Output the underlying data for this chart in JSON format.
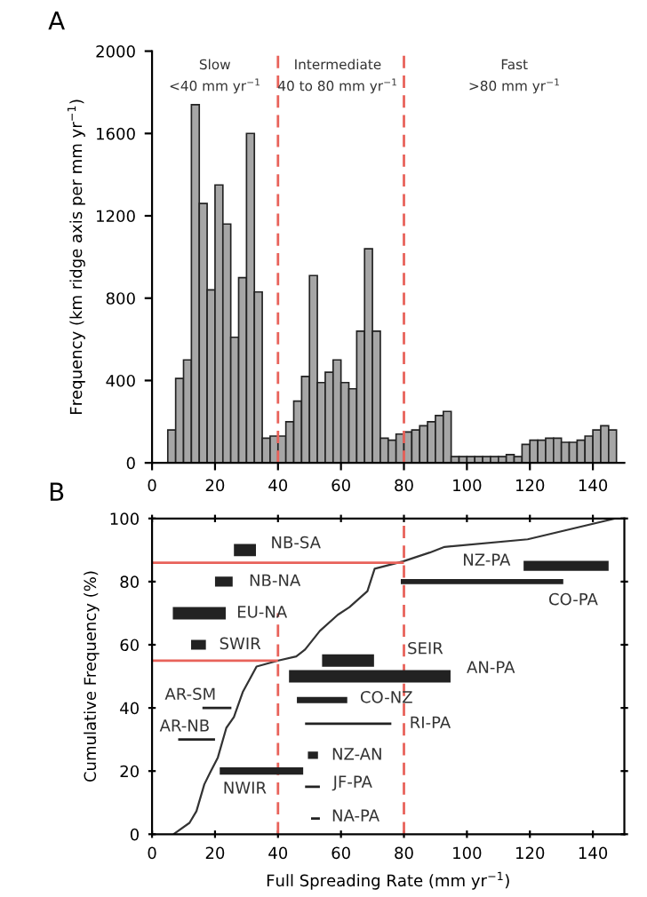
{
  "chart_data": [
    {
      "type": "histogram",
      "title": "A",
      "ylabel": "Frequency (km ridge axis per mm yr$^{−1}$)",
      "bins": [
        5,
        7.5,
        10,
        12.5,
        15,
        17.5,
        20,
        22.5,
        25,
        27.5,
        30,
        32.5,
        35,
        37.5,
        40,
        42.5,
        45,
        47.5,
        50,
        52.5,
        55,
        57.5,
        60,
        62.5,
        65,
        67.5,
        70,
        72.5,
        75,
        77.5,
        80,
        82.5,
        85,
        87.5,
        90,
        92.5,
        95,
        97.5,
        100,
        102.5,
        105,
        107.5,
        110,
        112.5,
        115,
        117.5,
        120,
        122.5,
        125,
        127.5,
        130,
        132.5,
        135,
        137.5,
        140,
        142.5,
        145,
        147.5
      ],
      "values": [
        160,
        410,
        500,
        1740,
        1260,
        840,
        1350,
        1160,
        610,
        900,
        1600,
        830,
        120,
        130,
        130,
        200,
        300,
        420,
        910,
        390,
        440,
        500,
        390,
        360,
        640,
        1040,
        640,
        120,
        110,
        140,
        150,
        160,
        180,
        200,
        230,
        250,
        30,
        30,
        30,
        30,
        30,
        30,
        30,
        40,
        30,
        90,
        110,
        110,
        120,
        120,
        100,
        100,
        110,
        130,
        160,
        180,
        160
      ],
      "color": "#a6a6a6",
      "xlim": [
        0,
        150
      ],
      "xticks": [
        0,
        20,
        40,
        60,
        80,
        100,
        120,
        140
      ],
      "ylim": [
        0,
        2000
      ],
      "yticks": [
        0,
        400,
        800,
        1200,
        1600,
        2000
      ],
      "ref_lines": [
        {
          "axis": "x",
          "value": 40,
          "color": "#e8625a",
          "line_style": "dashed"
        },
        {
          "axis": "x",
          "value": 80,
          "color": "#e8625a",
          "line_style": "dashed"
        }
      ],
      "annotations": [
        "Slow",
        "<40 mm yr$^{−1}$",
        "Intermediate",
        "40 to 80 mm yr$^{−1}$",
        "Fast",
        ">80 mm yr$^{−1}$"
      ],
      "grid": false
    },
    {
      "type": "line",
      "title": "B",
      "xlabel": "Full Spreading Rate (mm yr$^{−1}$)",
      "ylabel": "Cumulative Frequency (%)",
      "xlim": [
        0,
        150
      ],
      "xticks": [
        0,
        20,
        40,
        60,
        80,
        100,
        120,
        140
      ],
      "ylim": [
        0,
        100
      ],
      "yticks": [
        0,
        20,
        40,
        60,
        80,
        100
      ],
      "grid": false,
      "series": [
        {
          "color": "#333333",
          "line_style": "solid",
          "x": [
            6.8,
            11.9,
            14.1,
            16.6,
            18.5,
            20.9,
            23.6,
            26,
            28.8,
            33.2,
            40.1,
            45.8,
            48.6,
            53.3,
            59,
            62.7,
            68.4,
            70.7,
            79.7,
            88.2,
            92.9,
            119.3,
            147.2
          ],
          "values": [
            0,
            3.6,
            7.3,
            15.8,
            19.6,
            24.3,
            33.7,
            37.1,
            45,
            53.1,
            55,
            56.3,
            58.5,
            64.4,
            69.5,
            71.9,
            77,
            84.1,
            86.4,
            89.2,
            91,
            93.4,
            100
          ]
        },
        {
          "color": "#e8625a",
          "line_style": "solid",
          "x": [
            0,
            80
          ],
          "values": [
            86,
            86
          ]
        },
        {
          "color": "#e8625a",
          "line_style": "solid",
          "x": [
            0,
            40
          ],
          "values": [
            55,
            55
          ]
        },
        {
          "color": "#e8625a",
          "line_style": "dashed",
          "x": [
            40,
            40
          ],
          "values": [
            0,
            70
          ]
        },
        {
          "color": "#e8625a",
          "line_style": "dashed",
          "x": [
            80,
            80
          ],
          "values": [
            0,
            100
          ]
        },
        {
          "color": "#222222",
          "line_style": "solid",
          "x": [
            26,
            33
          ],
          "values": [
            90,
            90
          ]
        },
        {
          "color": "#222222",
          "line_style": "solid",
          "x": [
            118,
            145
          ],
          "values": [
            85,
            85
          ]
        },
        {
          "color": "#222222",
          "line_style": "solid",
          "x": [
            20,
            25.6
          ],
          "values": [
            80,
            80
          ]
        },
        {
          "color": "#222222",
          "line_style": "solid",
          "x": [
            79,
            130.6
          ],
          "values": [
            80,
            80
          ]
        },
        {
          "color": "#222222",
          "line_style": "solid",
          "x": [
            6.6,
            23.4
          ],
          "values": [
            70,
            70
          ]
        },
        {
          "color": "#222222",
          "line_style": "solid",
          "x": [
            12.4,
            17.1
          ],
          "values": [
            60,
            60
          ]
        },
        {
          "color": "#222222",
          "line_style": "solid",
          "x": [
            54,
            70.5
          ],
          "values": [
            55,
            55
          ]
        },
        {
          "color": "#222222",
          "line_style": "solid",
          "x": [
            43.5,
            94.8
          ],
          "values": [
            50,
            50
          ]
        },
        {
          "color": "#222222",
          "line_style": "solid",
          "x": [
            16,
            25.2
          ],
          "values": [
            40,
            40
          ]
        },
        {
          "color": "#222222",
          "line_style": "solid",
          "x": [
            46,
            62
          ],
          "values": [
            42.5,
            42.5
          ]
        },
        {
          "color": "#222222",
          "line_style": "solid",
          "x": [
            48.6,
            76
          ],
          "values": [
            35,
            35
          ]
        },
        {
          "color": "#222222",
          "line_style": "solid",
          "x": [
            8.3,
            20
          ],
          "values": [
            30,
            30
          ]
        },
        {
          "color": "#222222",
          "line_style": "solid",
          "x": [
            49.5,
            52.7
          ],
          "values": [
            25,
            25
          ]
        },
        {
          "color": "#222222",
          "line_style": "solid",
          "x": [
            21.5,
            48
          ],
          "values": [
            20,
            20
          ]
        },
        {
          "color": "#222222",
          "line_style": "solid",
          "x": [
            48.6,
            53.3
          ],
          "values": [
            15,
            15
          ]
        },
        {
          "color": "#222222",
          "line_style": "solid",
          "x": [
            50.5,
            53.3
          ],
          "values": [
            5,
            5
          ]
        }
      ],
      "annotations": [
        "NB-SA",
        "NZ-PA",
        "NB-NA",
        "CO-PA",
        "EU-NA",
        "SWIR",
        "SEIR",
        "AN-PA",
        "AR-SM",
        "CO-NZ",
        "RI-PA",
        "AR-NB",
        "NZ-AN",
        "NWIR",
        "JF-PA",
        "NA-PA"
      ]
    }
  ]
}
